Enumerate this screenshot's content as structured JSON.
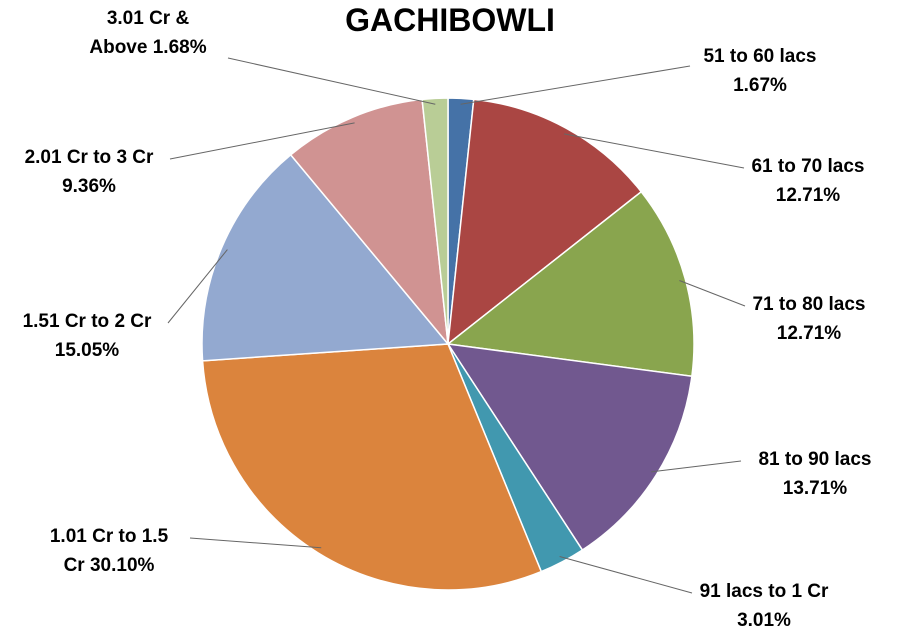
{
  "chart_data": {
    "type": "pie",
    "title": "GACHIBOWLI",
    "slices": [
      {
        "label": "51 to 60 lacs",
        "value": 1.67,
        "value_text": "1.67%",
        "color": "#4572a7"
      },
      {
        "label": "61 to 70 lacs",
        "value": 12.71,
        "value_text": "12.71%",
        "color": "#aa4643"
      },
      {
        "label": "71 to 80 lacs",
        "value": 12.71,
        "value_text": "12.71%",
        "color": "#89a54e"
      },
      {
        "label": "81 to 90 lacs",
        "value": 13.71,
        "value_text": "13.71%",
        "color": "#71588f"
      },
      {
        "label": "91 lacs to 1 Cr",
        "value": 3.01,
        "value_text": "3.01%",
        "color": "#4198af"
      },
      {
        "label": "1.01 Cr to 1.5 Cr",
        "value": 30.1,
        "value_text": "30.10%",
        "color": "#db843d"
      },
      {
        "label": "1.51 Cr to 2 Cr",
        "value": 15.05,
        "value_text": "15.05%",
        "color": "#93a9d0"
      },
      {
        "label": "2.01 Cr to 3 Cr",
        "value": 9.36,
        "value_text": "9.36%",
        "color": "#d09392"
      },
      {
        "label": "3.01 Cr & Above",
        "value": 1.68,
        "value_text": "1.68%",
        "color": "#b9cd96"
      }
    ],
    "legend": "none",
    "data_labels": "outside with leader lines"
  }
}
